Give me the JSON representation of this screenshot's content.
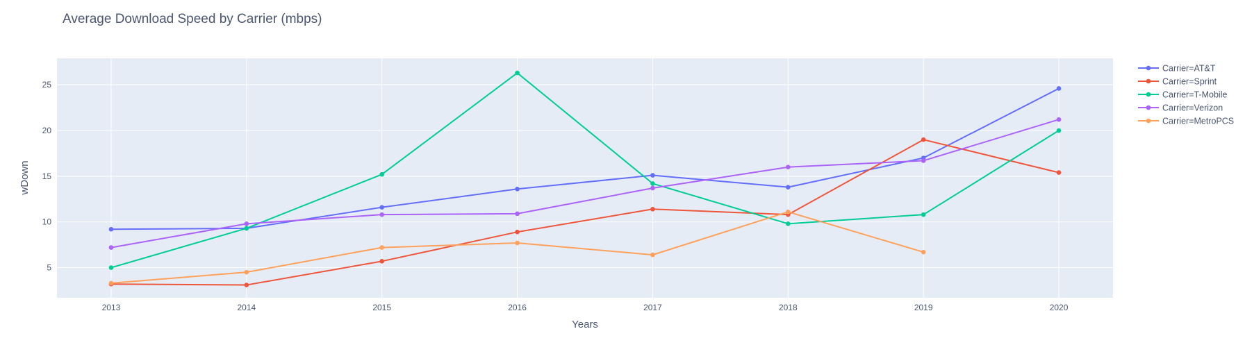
{
  "chart_data": {
    "type": "line",
    "title": "Average Download Speed by Carrier (mbps)",
    "xlabel": "Years",
    "ylabel": "wDown",
    "x": [
      2013,
      2014,
      2015,
      2016,
      2017,
      2018,
      2019,
      2020
    ],
    "xlim": [
      2012.6,
      2020.4
    ],
    "ylim": [
      1.7,
      27.9
    ],
    "yticks": [
      5,
      10,
      15,
      20,
      25
    ],
    "grid": true,
    "legend_position": "right",
    "plot_background": "#e5ecf6",
    "series": [
      {
        "name": "Carrier=AT&T",
        "color": "#636efa",
        "values": [
          9.2,
          9.3,
          11.6,
          13.6,
          15.1,
          13.8,
          17.0,
          24.6
        ]
      },
      {
        "name": "Carrier=Sprint",
        "color": "#ef553b",
        "values": [
          3.2,
          3.1,
          5.7,
          8.9,
          11.4,
          10.8,
          19.0,
          15.4
        ]
      },
      {
        "name": "Carrier=T-Mobile",
        "color": "#00cc96",
        "values": [
          5.0,
          9.3,
          15.2,
          26.3,
          14.2,
          9.8,
          10.8,
          20.0
        ]
      },
      {
        "name": "Carrier=Verizon",
        "color": "#ab63fa",
        "values": [
          7.2,
          9.8,
          10.8,
          10.9,
          13.7,
          16.0,
          16.7,
          21.2
        ]
      },
      {
        "name": "Carrier=MetroPCS",
        "color": "#ffa15a",
        "values": [
          3.3,
          4.5,
          7.2,
          7.7,
          6.4,
          11.1,
          6.7,
          null
        ]
      }
    ]
  }
}
